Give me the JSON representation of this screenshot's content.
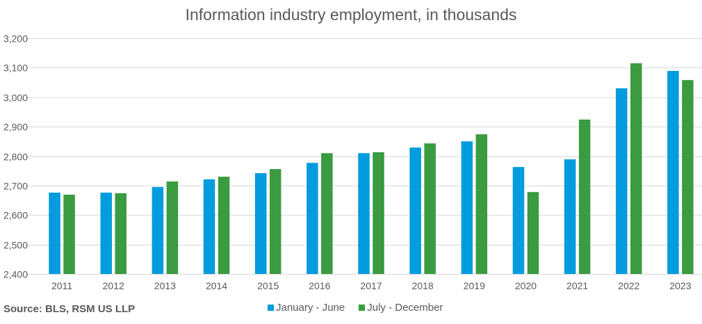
{
  "chart_data": {
    "type": "bar",
    "title": "Information industry employment, in thousands",
    "categories": [
      "2011",
      "2012",
      "2013",
      "2014",
      "2015",
      "2016",
      "2017",
      "2018",
      "2019",
      "2020",
      "2021",
      "2022",
      "2023"
    ],
    "series": [
      {
        "name": "January - June",
        "color": "#009CDE",
        "values": [
          2676,
          2676,
          2695,
          2721,
          2742,
          2777,
          2810,
          2829,
          2850,
          2763,
          2789,
          3030,
          3089
        ]
      },
      {
        "name": "July - December",
        "color": "#3A9B40",
        "values": [
          2669,
          2674,
          2714,
          2730,
          2756,
          2810,
          2813,
          2843,
          2874,
          2678,
          2924,
          3115,
          3058
        ]
      }
    ],
    "ylim": [
      2400,
      3200
    ],
    "yticks": [
      "2,400",
      "2,500",
      "2,600",
      "2,700",
      "2,800",
      "2,900",
      "3,000",
      "3,100",
      "3,200"
    ],
    "grid": true,
    "legend": "bottom"
  },
  "source": "Source: BLS, RSM US LLP"
}
